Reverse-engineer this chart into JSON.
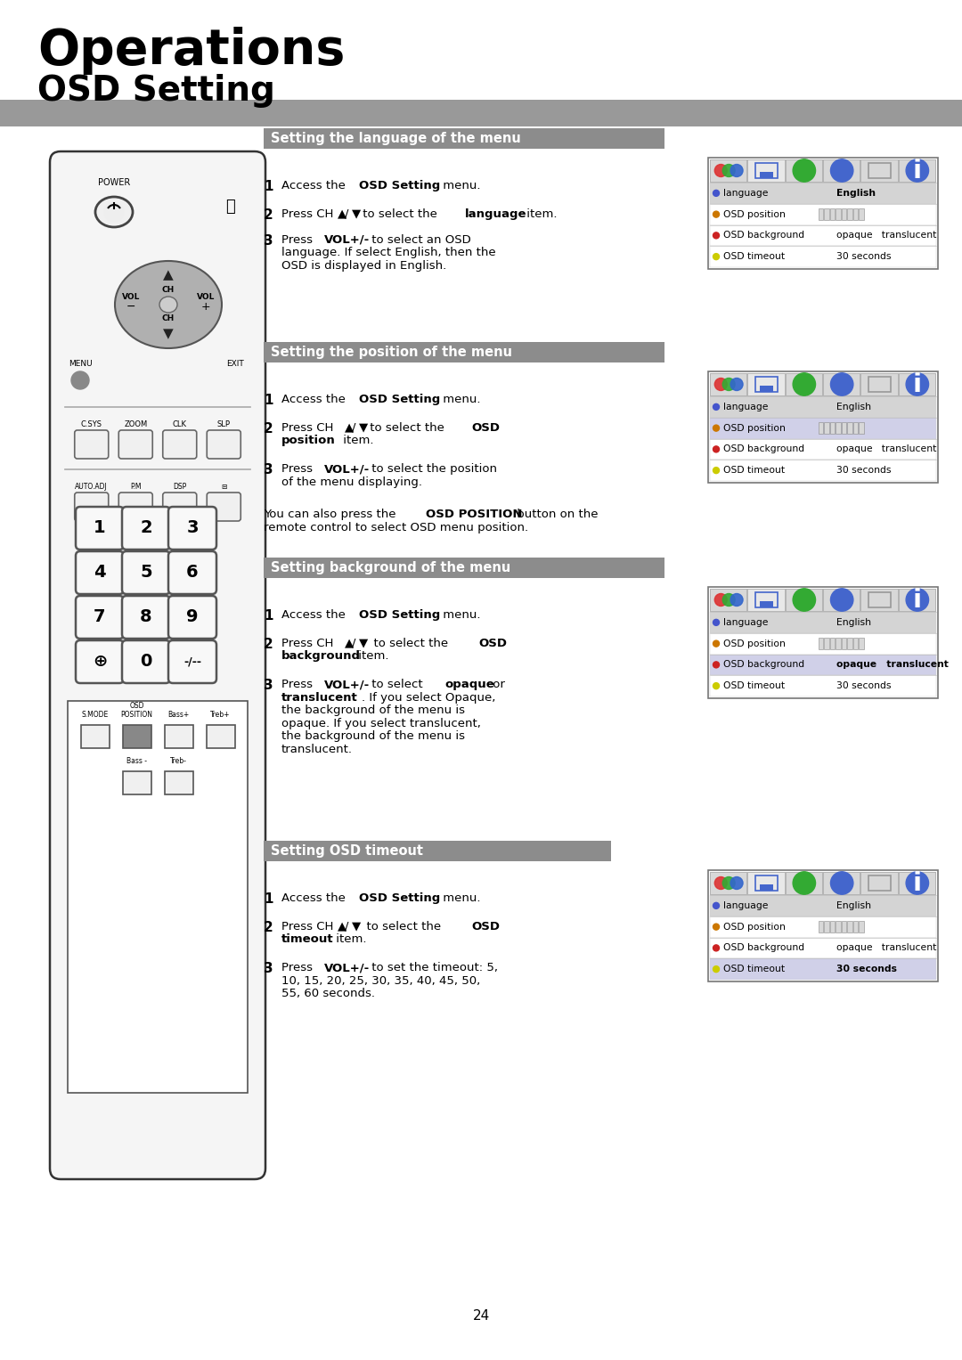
{
  "title": "Operations",
  "subtitle": "OSD Setting",
  "bg_color": "#ffffff",
  "section1_title": "Setting the language of the menu",
  "section2_title": "Setting the position of the menu",
  "section3_title": "Setting background of the menu",
  "section4_title": "Setting OSD timeout",
  "page_number": "24",
  "gray_bar_color": "#999999",
  "section_bar_color": "#8c8c8c",
  "remote_body_color": "#f5f5f5",
  "remote_border_color": "#333333",
  "dpad_color": "#b0b0b0",
  "menu_btn_color": "#888888",
  "num_btn_face": "#f8f8f8",
  "osd_panel_border": "#777777",
  "osd_icon_bar_bg": "#c0c0c0",
  "osd_row0_bg": "#d4d4d4",
  "osd_row_bg": "#ffffff",
  "osd_highlight_bg": "#d0d0e8"
}
